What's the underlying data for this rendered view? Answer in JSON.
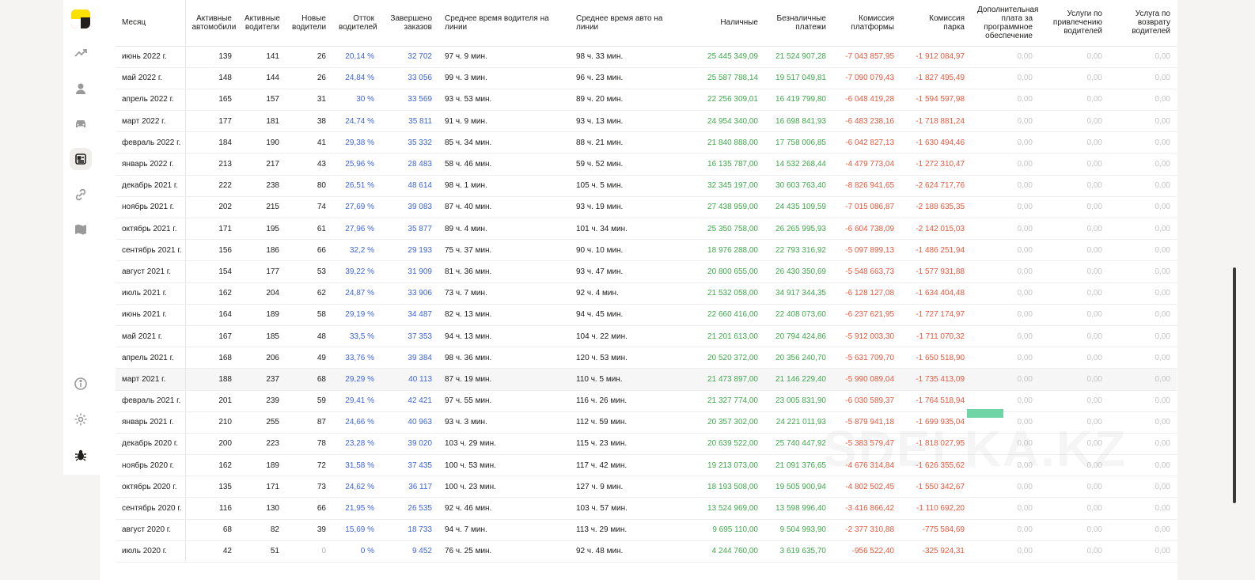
{
  "columns": [
    "Месяц",
    "Активные автомобили",
    "Активные водители",
    "Новые водители",
    "Отток водителей",
    "Завершено заказов",
    "Среднее время водителя на линии",
    "Среднее время авто на линии",
    "Наличные",
    "Безналичные платежи",
    "Комиссия платформы",
    "Комиссия парка",
    "Дополнительная плата за программное обеспечение",
    "Услуги по привлечению водителей",
    "Услуга по возврату водителей"
  ],
  "watermark": "SDELKA.KZ",
  "colors": {
    "blue": "#3c64d9",
    "green": "#3fa94b",
    "red": "#e8573d"
  },
  "rows": [
    [
      "июнь 2022 г.",
      "139",
      "141",
      "26",
      "20,14 %",
      "32 702",
      "97 ч. 9 мин.",
      "98 ч. 33 мин.",
      "25 445 349,09",
      "21 524 907,28",
      "-7 043 857,95",
      "-1 912 084,97",
      "0,00",
      "0,00",
      "0,00"
    ],
    [
      "май 2022 г.",
      "148",
      "144",
      "26",
      "24,84 %",
      "33 056",
      "99 ч. 3 мин.",
      "96 ч. 23 мин.",
      "25 587 788,14",
      "19 517 049,81",
      "-7 090 079,43",
      "-1 827 495,49",
      "0,00",
      "0,00",
      "0,00"
    ],
    [
      "апрель 2022 г.",
      "165",
      "157",
      "31",
      "30 %",
      "33 569",
      "93 ч. 53 мин.",
      "89 ч. 20 мин.",
      "22 256 309,01",
      "16 419 799,80",
      "-6 048 419,28",
      "-1 594 597,98",
      "0,00",
      "0,00",
      "0,00"
    ],
    [
      "март 2022 г.",
      "177",
      "181",
      "38",
      "24,74 %",
      "35 811",
      "91 ч. 9 мин.",
      "93 ч. 13 мин.",
      "24 954 340,00",
      "16 698 841,93",
      "-6 483 238,16",
      "-1 718 881,24",
      "0,00",
      "0,00",
      "0,00"
    ],
    [
      "февраль 2022 г.",
      "184",
      "190",
      "41",
      "29,38 %",
      "35 332",
      "85 ч. 34 мин.",
      "88 ч. 21 мин.",
      "21 840 888,00",
      "17 758 006,85",
      "-6 042 827,13",
      "-1 630 494,46",
      "0,00",
      "0,00",
      "0,00"
    ],
    [
      "январь 2022 г.",
      "213",
      "217",
      "43",
      "25,96 %",
      "28 483",
      "58 ч. 46 мин.",
      "59 ч. 52 мин.",
      "16 135 787,00",
      "14 532 268,44",
      "-4 479 773,04",
      "-1 272 310,47",
      "0,00",
      "0,00",
      "0,00"
    ],
    [
      "декабрь 2021 г.",
      "222",
      "238",
      "80",
      "26,51 %",
      "48 614",
      "98 ч. 1 мин.",
      "105 ч. 5 мин.",
      "32 345 197,00",
      "30 603 763,40",
      "-8 826 941,65",
      "-2 624 717,76",
      "0,00",
      "0,00",
      "0,00"
    ],
    [
      "ноябрь 2021 г.",
      "202",
      "215",
      "74",
      "27,69 %",
      "39 083",
      "87 ч. 40 мин.",
      "93 ч. 19 мин.",
      "27 438 959,00",
      "24 435 109,59",
      "-7 015 086,87",
      "-2 188 635,35",
      "0,00",
      "0,00",
      "0,00"
    ],
    [
      "октябрь 2021 г.",
      "171",
      "195",
      "61",
      "27,96 %",
      "35 877",
      "89 ч. 4 мин.",
      "101 ч. 34 мин.",
      "25 350 758,00",
      "26 265 995,93",
      "-6 604 738,09",
      "-2 142 015,03",
      "0,00",
      "0,00",
      "0,00"
    ],
    [
      "сентябрь 2021 г.",
      "156",
      "186",
      "66",
      "32,2 %",
      "29 193",
      "75 ч. 37 мин.",
      "90 ч. 10 мин.",
      "18 976 288,00",
      "22 793 316,92",
      "-5 097 899,13",
      "-1 486 251,94",
      "0,00",
      "0,00",
      "0,00"
    ],
    [
      "август 2021 г.",
      "154",
      "177",
      "53",
      "39,22 %",
      "31 909",
      "81 ч. 36 мин.",
      "93 ч. 47 мин.",
      "20 800 655,00",
      "26 430 350,69",
      "-5 548 663,73",
      "-1 577 931,88",
      "0,00",
      "0,00",
      "0,00"
    ],
    [
      "июль 2021 г.",
      "162",
      "204",
      "62",
      "24,87 %",
      "33 906",
      "73 ч. 7 мин.",
      "92 ч. 4 мин.",
      "21 532 058,00",
      "34 917 344,35",
      "-6 128 127,08",
      "-1 634 404,48",
      "0,00",
      "0,00",
      "0,00"
    ],
    [
      "июнь 2021 г.",
      "164",
      "189",
      "58",
      "29,19 %",
      "34 487",
      "82 ч. 13 мин.",
      "94 ч. 45 мин.",
      "22 660 416,00",
      "22 408 073,60",
      "-6 237 621,95",
      "-1 727 174,97",
      "0,00",
      "0,00",
      "0,00"
    ],
    [
      "май 2021 г.",
      "167",
      "185",
      "48",
      "33,5 %",
      "37 353",
      "94 ч. 13 мин.",
      "104 ч. 22 мин.",
      "21 201 613,00",
      "20 794 424,86",
      "-5 912 003,30",
      "-1 711 070,32",
      "0,00",
      "0,00",
      "0,00"
    ],
    [
      "апрель 2021 г.",
      "168",
      "206",
      "49",
      "33,76 %",
      "39 384",
      "98 ч. 36 мин.",
      "120 ч. 53 мин.",
      "20 520 372,00",
      "20 356 240,70",
      "-5 631 709,70",
      "-1 650 518,90",
      "0,00",
      "0,00",
      "0,00"
    ],
    [
      "март 2021 г.",
      "188",
      "237",
      "68",
      "29,29 %",
      "40 113",
      "87 ч. 19 мин.",
      "110 ч. 5 мин.",
      "21 473 897,00",
      "21 146 229,40",
      "-5 990 089,04",
      "-1 735 413,09",
      "0,00",
      "0,00",
      "0,00"
    ],
    [
      "февраль 2021 г.",
      "201",
      "239",
      "59",
      "29,41 %",
      "42 421",
      "97 ч. 55 мин.",
      "116 ч. 26 мин.",
      "21 327 774,00",
      "23 005 831,90",
      "-6 030 589,37",
      "-1 764 518,94",
      "0,00",
      "0,00",
      "0,00"
    ],
    [
      "январь 2021 г.",
      "210",
      "255",
      "87",
      "24,66 %",
      "40 963",
      "93 ч. 3 мин.",
      "112 ч. 59 мин.",
      "20 357 302,00",
      "24 221 011,93",
      "-5 879 941,18",
      "-1 699 935,04",
      "0,00",
      "0,00",
      "0,00"
    ],
    [
      "декабрь 2020 г.",
      "200",
      "223",
      "78",
      "23,28 %",
      "39 020",
      "103 ч. 29 мин.",
      "115 ч. 23 мин.",
      "20 639 522,00",
      "25 740 447,92",
      "-5 383 579,47",
      "-1 818 027,95",
      "0,00",
      "0,00",
      "0,00"
    ],
    [
      "ноябрь 2020 г.",
      "162",
      "189",
      "72",
      "31,58 %",
      "37 435",
      "100 ч. 53 мин.",
      "117 ч. 42 мин.",
      "19 213 073,00",
      "21 091 376,65",
      "-4 676 314,84",
      "-1 626 355,62",
      "0,00",
      "0,00",
      "0,00"
    ],
    [
      "октябрь 2020 г.",
      "135",
      "171",
      "73",
      "24,62 %",
      "36 117",
      "100 ч. 23 мин.",
      "127 ч. 9 мин.",
      "18 193 508,00",
      "19 505 900,94",
      "-4 802 502,45",
      "-1 550 342,67",
      "0,00",
      "0,00",
      "0,00"
    ],
    [
      "сентябрь 2020 г.",
      "116",
      "130",
      "66",
      "21,95 %",
      "26 535",
      "92 ч. 46 мин.",
      "103 ч. 57 мин.",
      "13 524 969,00",
      "13 598 996,40",
      "-3 416 866,42",
      "-1 110 692,20",
      "0,00",
      "0,00",
      "0,00"
    ],
    [
      "август 2020 г.",
      "68",
      "82",
      "39",
      "15,69 %",
      "18 733",
      "94 ч. 7 мин.",
      "113 ч. 29 мин.",
      "9 695 110,00",
      "9 504 993,90",
      "-2 377 310,88",
      "-775 584,69",
      "0,00",
      "0,00",
      "0,00"
    ],
    [
      "июль 2020 г.",
      "42",
      "51",
      "0",
      "0 %",
      "9 452",
      "76 ч. 25 мин.",
      "92 ч. 48 мин.",
      "4 244 760,00",
      "3 619 635,70",
      "-956 522,40",
      "-325 924,31",
      "0,00",
      "0,00",
      "0,00"
    ]
  ]
}
